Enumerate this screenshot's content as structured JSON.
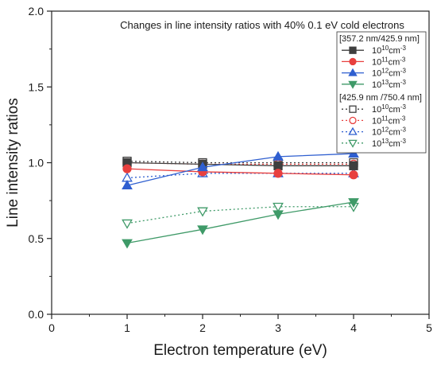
{
  "chart_data": {
    "type": "line",
    "title": "Changes in line intensity ratios with 40% 0.1 eV cold electrons",
    "xlabel": "Electron temperature (eV)",
    "ylabel": "Line intensity ratios",
    "xlim": [
      0,
      5
    ],
    "ylim": [
      0.0,
      2.0
    ],
    "xticks": [
      "0",
      "1",
      "2",
      "3",
      "4",
      "5"
    ],
    "yticks": [
      "0.0",
      "0.5",
      "1.0",
      "1.5",
      "2.0"
    ],
    "x": [
      1,
      2,
      3,
      4
    ],
    "legend_position": "top-right",
    "groups": [
      {
        "title": "[357.2 nm/425.9 nm]"
      },
      {
        "title": "[425.9 nm /750.4 nm]"
      }
    ],
    "series": [
      {
        "group": 0,
        "base": "10",
        "exp": "10",
        "unit": "cm",
        "unit_exp": "-3",
        "values": [
          1.0,
          0.99,
          0.98,
          0.98
        ],
        "color": "#3f3f3f",
        "marker": "square",
        "filled": true,
        "dash": "solid"
      },
      {
        "group": 0,
        "base": "10",
        "exp": "11",
        "unit": "cm",
        "unit_exp": "-3",
        "values": [
          0.96,
          0.94,
          0.93,
          0.92
        ],
        "color": "#e8403f",
        "marker": "circle",
        "filled": true,
        "dash": "solid"
      },
      {
        "group": 0,
        "base": "10",
        "exp": "12",
        "unit": "cm",
        "unit_exp": "-3",
        "values": [
          0.85,
          0.97,
          1.04,
          1.06
        ],
        "color": "#2f5fd0",
        "marker": "triangle-up",
        "filled": true,
        "dash": "solid"
      },
      {
        "group": 0,
        "base": "10",
        "exp": "13",
        "unit": "cm",
        "unit_exp": "-3",
        "values": [
          0.47,
          0.56,
          0.66,
          0.74
        ],
        "color": "#3f9a68",
        "marker": "triangle-down",
        "filled": true,
        "dash": "solid"
      },
      {
        "group": 1,
        "base": "10",
        "exp": "10",
        "unit": "cm",
        "unit_exp": "-3",
        "values": [
          1.01,
          1.0,
          1.0,
          1.0
        ],
        "color": "#3f3f3f",
        "marker": "square",
        "filled": false,
        "dash": "dotted"
      },
      {
        "group": 1,
        "base": "10",
        "exp": "11",
        "unit": "cm",
        "unit_exp": "-3",
        "values": [
          1.0,
          0.99,
          0.99,
          0.99
        ],
        "color": "#e8403f",
        "marker": "circle",
        "filled": false,
        "dash": "dotted"
      },
      {
        "group": 1,
        "base": "10",
        "exp": "12",
        "unit": "cm",
        "unit_exp": "-3",
        "values": [
          0.9,
          0.93,
          0.93,
          0.93
        ],
        "color": "#2f5fd0",
        "marker": "triangle-up",
        "filled": false,
        "dash": "dotted"
      },
      {
        "group": 1,
        "base": "10",
        "exp": "13",
        "unit": "cm",
        "unit_exp": "-3",
        "values": [
          0.6,
          0.68,
          0.71,
          0.71
        ],
        "color": "#3f9a68",
        "marker": "triangle-down",
        "filled": false,
        "dash": "dotted"
      }
    ]
  }
}
